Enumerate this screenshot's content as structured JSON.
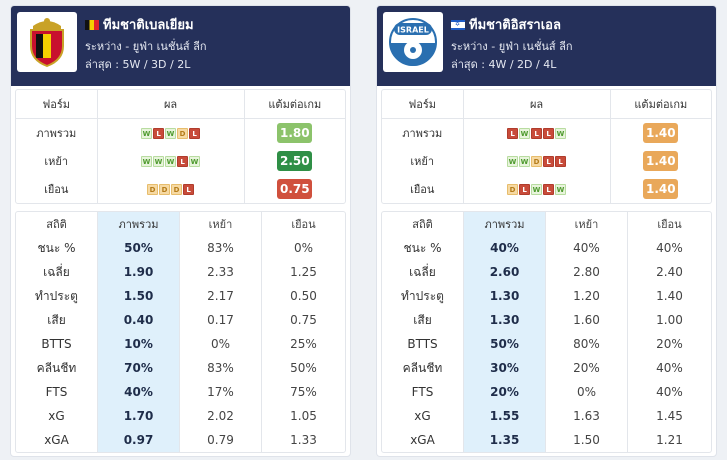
{
  "teams": [
    {
      "name": "ทีมชาติเบลเยียม",
      "flag": "belgium-flag",
      "logo": "belgium-crest-icon",
      "competition": "ระหว่าง - ยูฟ่า เนชั่นส์ ลีก",
      "last": "ล่าสุด : 5W / 3D / 2L",
      "form_headers": [
        "ฟอร์ม",
        "ผล",
        "แต้มต่อเกม"
      ],
      "form_rows": [
        {
          "label": "ภาพรวม",
          "results": [
            "W",
            "L",
            "W",
            "D",
            "L"
          ],
          "points": "1.80",
          "color": "#8cc36b"
        },
        {
          "label": "เหย้า",
          "results": [
            "W",
            "W",
            "W",
            "L",
            "W"
          ],
          "points": "2.50",
          "color": "#2f8f46"
        },
        {
          "label": "เยือน",
          "results": [
            "D",
            "D",
            "D",
            "L"
          ],
          "points": "0.75",
          "color": "#d0503d"
        }
      ],
      "stat_headers": [
        "สถิติ",
        "ภาพรวม",
        "เหย้า",
        "เยือน"
      ],
      "stat_rows": [
        {
          "label": "ชนะ %",
          "overall": "50%",
          "home": "83%",
          "away": "0%"
        },
        {
          "label": "เฉลี่ย",
          "overall": "1.90",
          "home": "2.33",
          "away": "1.25"
        },
        {
          "label": "ทำประตู",
          "overall": "1.50",
          "home": "2.17",
          "away": "0.50"
        },
        {
          "label": "เสีย",
          "overall": "0.40",
          "home": "0.17",
          "away": "0.75"
        },
        {
          "label": "BTTS",
          "overall": "10%",
          "home": "0%",
          "away": "25%"
        },
        {
          "label": "คลีนชีท",
          "overall": "70%",
          "home": "83%",
          "away": "50%"
        },
        {
          "label": "FTS",
          "overall": "40%",
          "home": "17%",
          "away": "75%"
        },
        {
          "label": "xG",
          "overall": "1.70",
          "home": "2.02",
          "away": "1.05"
        },
        {
          "label": "xGA",
          "overall": "0.97",
          "home": "0.79",
          "away": "1.33"
        }
      ]
    },
    {
      "name": "ทีมชาติอิสราเอล",
      "flag": "israel-flag",
      "logo": "israel-fa-logo-icon",
      "logo_text": "ISRAEL",
      "competition": "ระหว่าง - ยูฟ่า เนชั่นส์ ลีก",
      "last": "ล่าสุด : 4W / 2D / 4L",
      "form_headers": [
        "ฟอร์ม",
        "ผล",
        "แต้มต่อเกม"
      ],
      "form_rows": [
        {
          "label": "ภาพรวม",
          "results": [
            "L",
            "W",
            "L",
            "L",
            "W"
          ],
          "points": "1.40",
          "color": "#e9a85a"
        },
        {
          "label": "เหย้า",
          "results": [
            "W",
            "W",
            "D",
            "L",
            "L"
          ],
          "points": "1.40",
          "color": "#e9a85a"
        },
        {
          "label": "เยือน",
          "results": [
            "D",
            "L",
            "W",
            "L",
            "W"
          ],
          "points": "1.40",
          "color": "#e9a85a"
        }
      ],
      "stat_headers": [
        "สถิติ",
        "ภาพรวม",
        "เหย้า",
        "เยือน"
      ],
      "stat_rows": [
        {
          "label": "ชนะ %",
          "overall": "40%",
          "home": "40%",
          "away": "40%"
        },
        {
          "label": "เฉลี่ย",
          "overall": "2.60",
          "home": "2.80",
          "away": "2.40"
        },
        {
          "label": "ทำประตู",
          "overall": "1.30",
          "home": "1.20",
          "away": "1.40"
        },
        {
          "label": "เสีย",
          "overall": "1.30",
          "home": "1.60",
          "away": "1.00"
        },
        {
          "label": "BTTS",
          "overall": "50%",
          "home": "80%",
          "away": "20%"
        },
        {
          "label": "คลีนชีท",
          "overall": "30%",
          "home": "20%",
          "away": "40%"
        },
        {
          "label": "FTS",
          "overall": "20%",
          "home": "0%",
          "away": "40%"
        },
        {
          "label": "xG",
          "overall": "1.55",
          "home": "1.63",
          "away": "1.45"
        },
        {
          "label": "xGA",
          "overall": "1.35",
          "home": "1.50",
          "away": "1.21"
        }
      ]
    }
  ]
}
